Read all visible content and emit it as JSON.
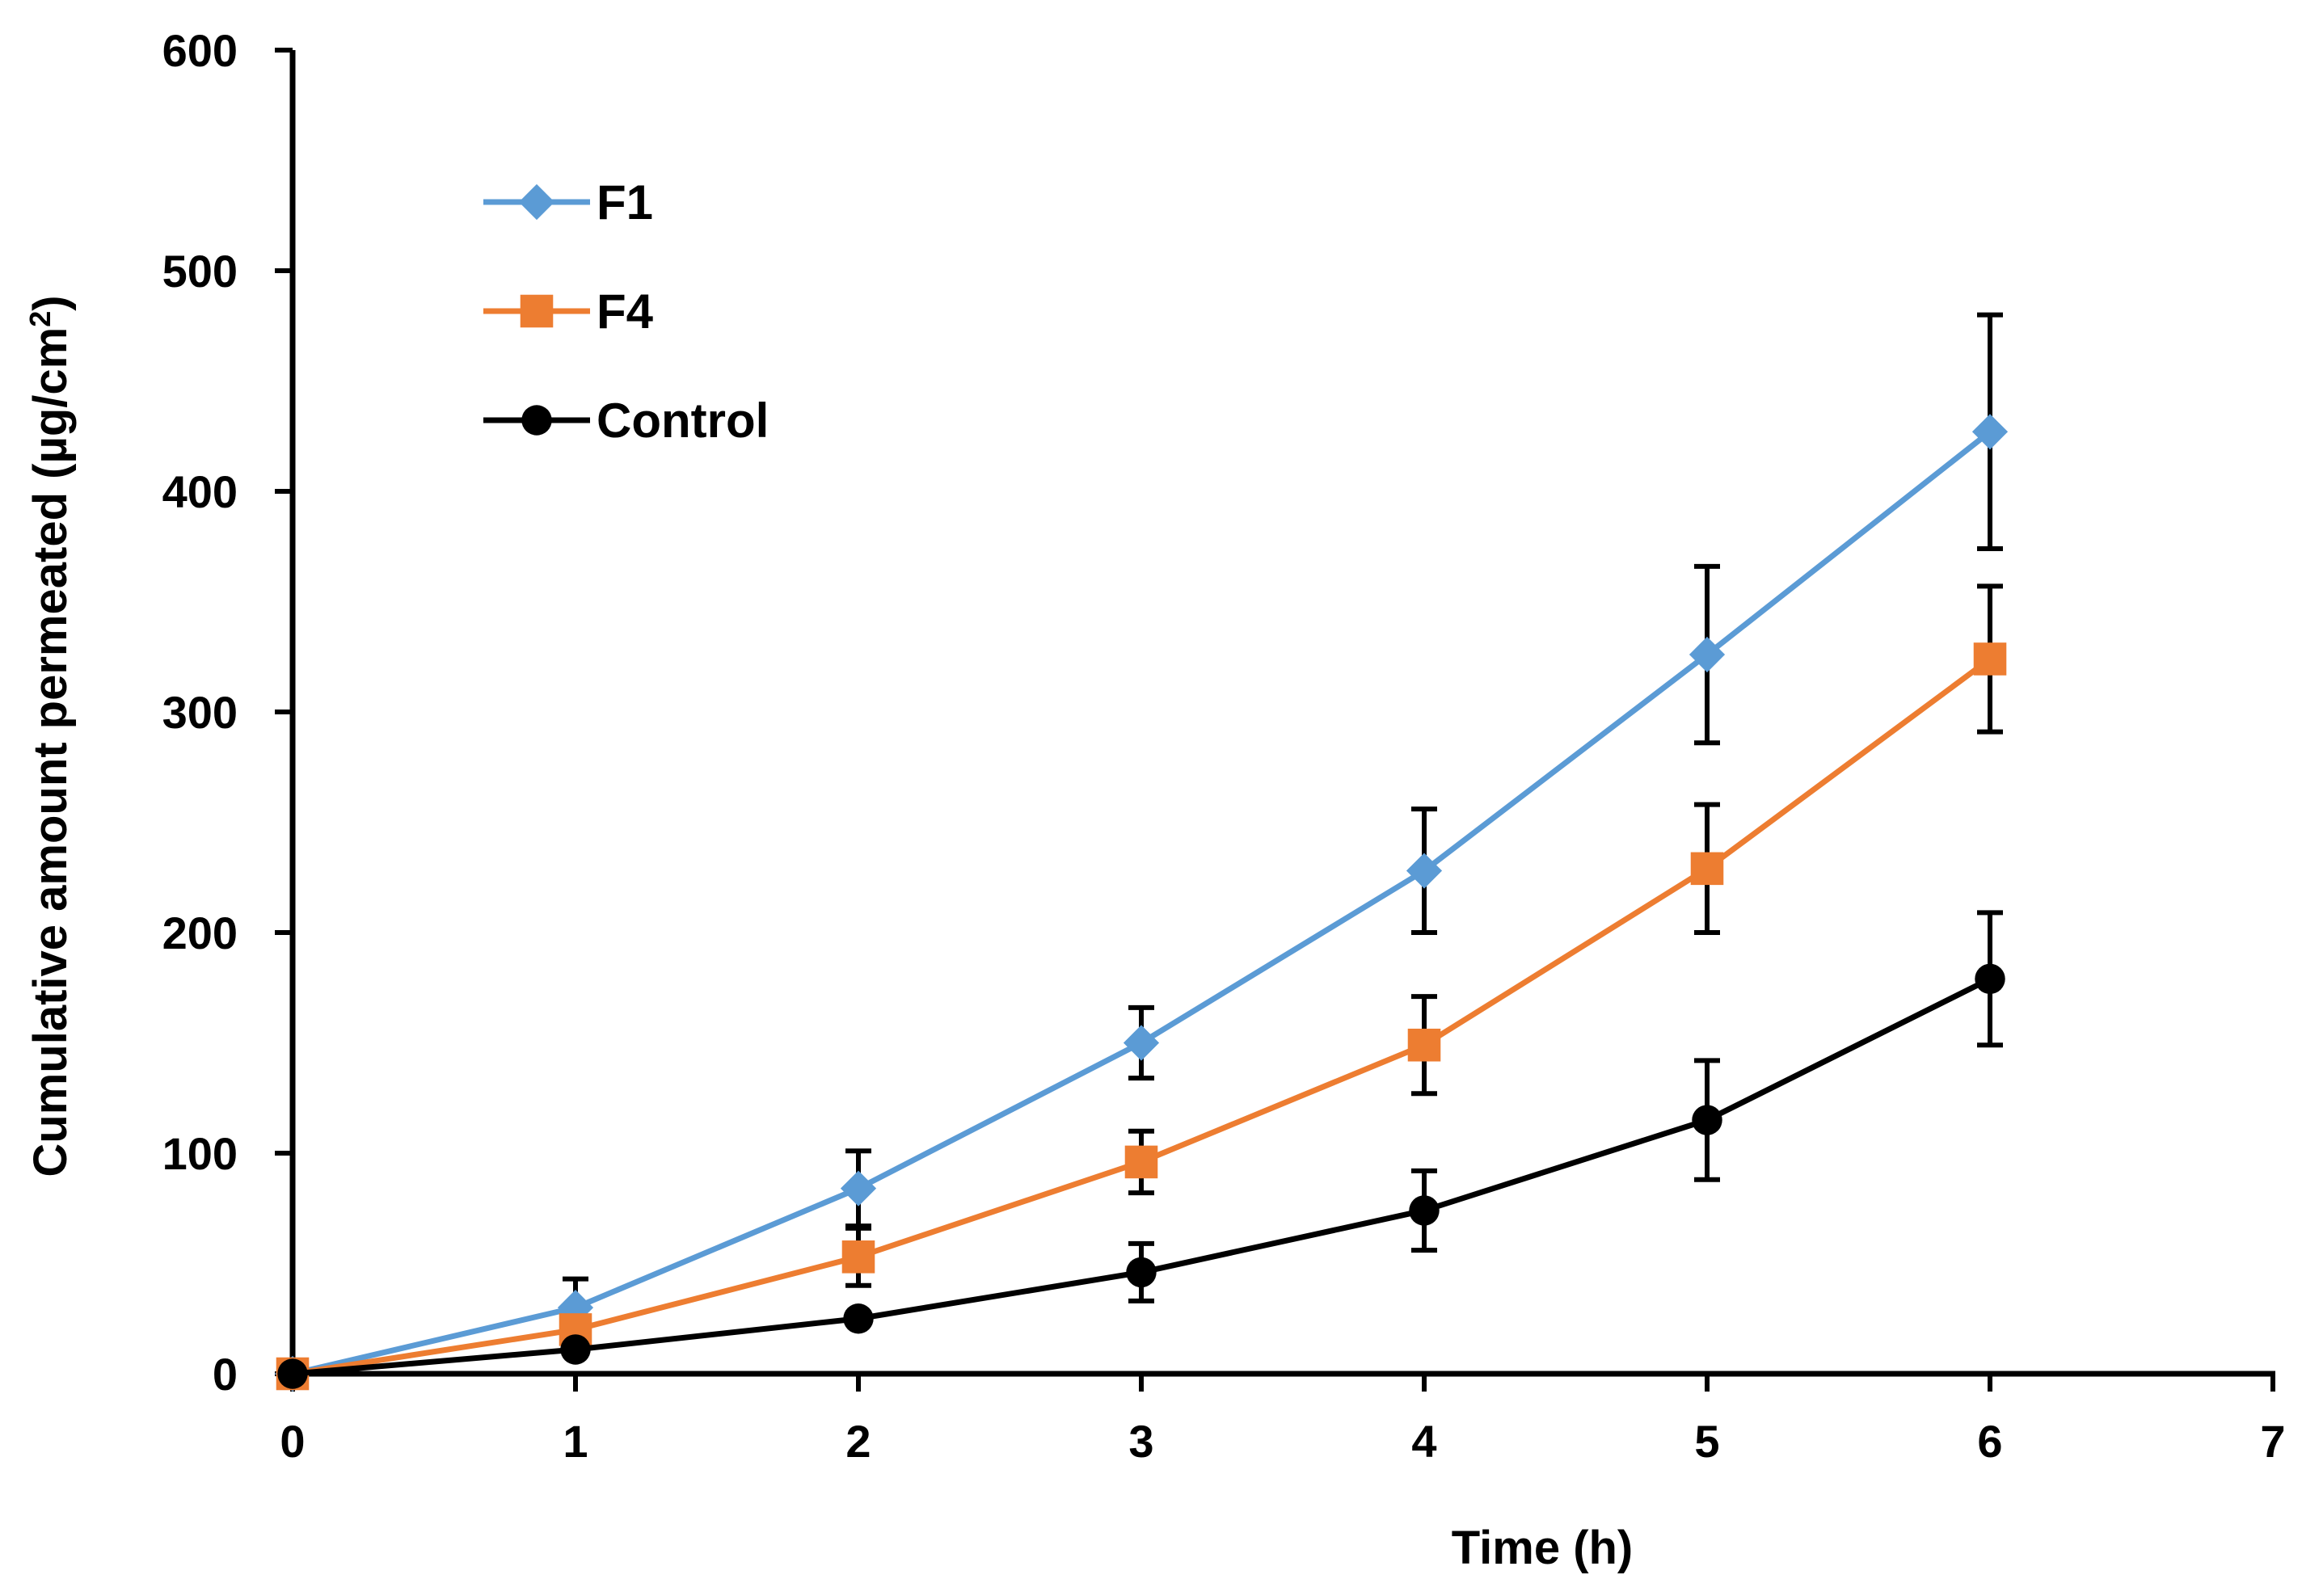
{
  "chart_data": {
    "type": "line",
    "title": "",
    "xlabel": "Time (h)",
    "ylabel_main": "Cumulative amount permeated (µg/cm",
    "ylabel_sup": "2",
    "ylabel_close": ")",
    "xlim": [
      0,
      7
    ],
    "ylim": [
      0,
      600
    ],
    "x_ticks": [
      0,
      1,
      2,
      3,
      4,
      5,
      6,
      7
    ],
    "x_tick_labels": [
      "0",
      "1",
      "2",
      "3",
      "4",
      "5",
      "6",
      "7"
    ],
    "y_ticks": [
      0,
      100,
      200,
      300,
      400,
      500,
      600
    ],
    "y_tick_labels": [
      "0",
      "100",
      "200",
      "300",
      "400",
      "500",
      "600"
    ],
    "grid": false,
    "legend_position": "top-left",
    "x": [
      0,
      1,
      2,
      3,
      4,
      5,
      6
    ],
    "series": [
      {
        "name": "F1",
        "color": "#5b9bd5",
        "marker": "diamond",
        "values": [
          0,
          30,
          84,
          150,
          228,
          326,
          427
        ],
        "errors": [
          0,
          13,
          17,
          16,
          28,
          40,
          53
        ]
      },
      {
        "name": "F4",
        "color": "#ed7d31",
        "marker": "square",
        "values": [
          0,
          20,
          53,
          96,
          149,
          229,
          324
        ],
        "errors": [
          0,
          0,
          13,
          14,
          22,
          29,
          33
        ]
      },
      {
        "name": "Control",
        "color": "#000000",
        "marker": "circle",
        "values": [
          0,
          11,
          25,
          46,
          74,
          115,
          179
        ],
        "errors": [
          0,
          0,
          0,
          13,
          18,
          27,
          30
        ]
      }
    ]
  }
}
